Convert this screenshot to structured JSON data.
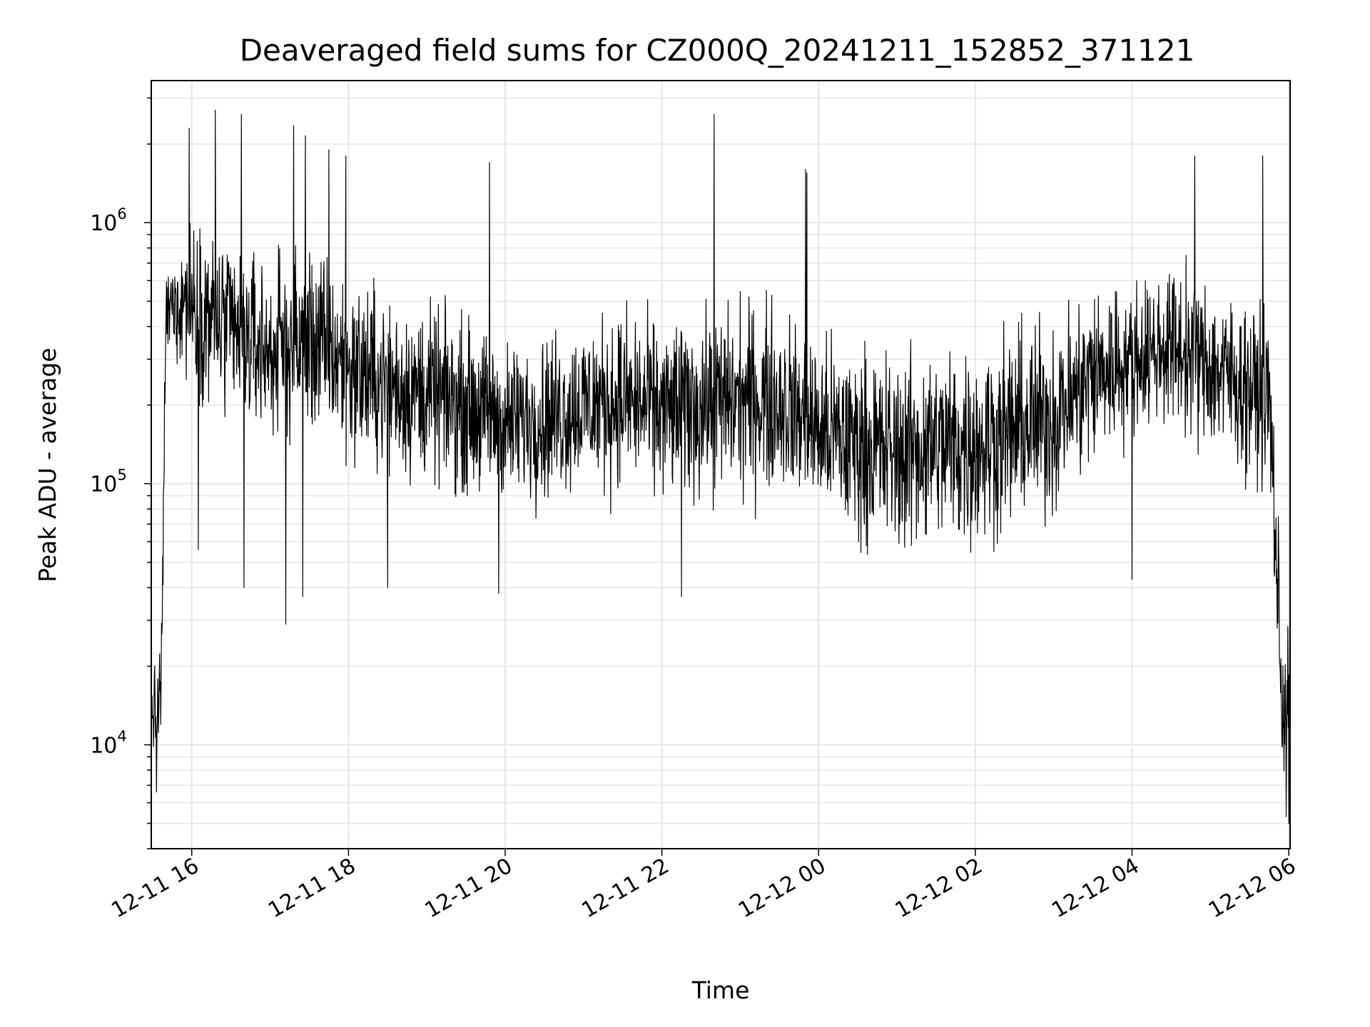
{
  "chart_data": {
    "type": "line",
    "title": "Deaveraged field sums for CZ000Q_20241211_152852_371121",
    "xlabel": "Time",
    "ylabel": "Peak ADU - average",
    "y_scale": "log",
    "ylim": [
      4000,
      3500000
    ],
    "xlim": [
      "2024-12-11 15:29",
      "2024-12-12 06:01"
    ],
    "grid": true,
    "x_ticks": [
      "12-11 16",
      "12-11 18",
      "12-11 20",
      "12-11 22",
      "12-12 00",
      "12-12 02",
      "12-12 04",
      "12-12 06"
    ],
    "x_tick_times": [
      "2024-12-11 16:00",
      "2024-12-11 18:00",
      "2024-12-11 20:00",
      "2024-12-11 22:00",
      "2024-12-12 00:00",
      "2024-12-12 02:00",
      "2024-12-12 04:00",
      "2024-12-12 06:00"
    ],
    "y_ticks": [
      {
        "base": "10",
        "exp": "4",
        "value": 10000
      },
      {
        "base": "10",
        "exp": "5",
        "value": 100000
      },
      {
        "base": "10",
        "exp": "6",
        "value": 1000000
      }
    ],
    "series": [
      {
        "color": "#000000",
        "x": [
          "2024-12-11 15:29",
          "2024-12-11 15:33",
          "2024-12-11 15:37",
          "2024-12-11 15:40",
          "2024-12-11 15:45",
          "2024-12-11 15:55",
          "2024-12-11 16:10",
          "2024-12-11 16:30",
          "2024-12-11 17:00",
          "2024-12-11 17:30",
          "2024-12-11 18:00",
          "2024-12-11 18:30",
          "2024-12-11 19:00",
          "2024-12-11 19:30",
          "2024-12-11 20:00",
          "2024-12-11 20:30",
          "2024-12-11 21:00",
          "2024-12-11 21:30",
          "2024-12-11 22:00",
          "2024-12-11 22:30",
          "2024-12-11 23:00",
          "2024-12-11 23:30",
          "2024-12-12 00:00",
          "2024-12-12 00:30",
          "2024-12-12 01:00",
          "2024-12-12 01:30",
          "2024-12-12 02:00",
          "2024-12-12 02:30",
          "2024-12-12 03:00",
          "2024-12-12 03:30",
          "2024-12-12 04:00",
          "2024-12-12 04:30",
          "2024-12-12 05:00",
          "2024-12-12 05:30",
          "2024-12-12 05:45",
          "2024-12-12 05:50",
          "2024-12-12 05:55",
          "2024-12-12 06:01"
        ],
        "y": [
          15000,
          12000,
          18000,
          420000,
          480000,
          520000,
          450000,
          380000,
          320000,
          360000,
          280000,
          240000,
          220000,
          200000,
          170000,
          180000,
          200000,
          210000,
          190000,
          200000,
          210000,
          210000,
          160000,
          140000,
          130000,
          140000,
          140000,
          160000,
          180000,
          260000,
          300000,
          340000,
          280000,
          230000,
          220000,
          60000,
          14000,
          15000
        ],
        "envelope_low": [
          8000,
          7000,
          9000,
          250000,
          250000,
          200000,
          150000,
          120000,
          110000,
          110000,
          90000,
          80000,
          75000,
          70000,
          65000,
          65000,
          70000,
          70000,
          65000,
          65000,
          65000,
          65000,
          60000,
          55000,
          50000,
          52000,
          55000,
          55000,
          60000,
          80000,
          120000,
          140000,
          110000,
          90000,
          90000,
          30000,
          8000,
          7000
        ],
        "envelope_high": [
          25000,
          20000,
          40000,
          650000,
          900000,
          1100000,
          1000000,
          900000,
          800000,
          900000,
          700000,
          600000,
          550000,
          500000,
          450000,
          480000,
          500000,
          520000,
          500000,
          520000,
          550000,
          560000,
          500000,
          480000,
          450000,
          480000,
          500000,
          550000,
          600000,
          650000,
          700000,
          900000,
          800000,
          650000,
          650000,
          200000,
          40000,
          45000
        ],
        "spikes": [
          {
            "x": "2024-12-11 15:58",
            "y": 2300000
          },
          {
            "x": "2024-12-11 16:18",
            "y": 2700000
          },
          {
            "x": "2024-12-11 16:38",
            "y": 2600000
          },
          {
            "x": "2024-12-11 17:18",
            "y": 2350000
          },
          {
            "x": "2024-12-11 17:27",
            "y": 2150000
          },
          {
            "x": "2024-12-11 17:45",
            "y": 1900000
          },
          {
            "x": "2024-12-11 17:58",
            "y": 1800000
          },
          {
            "x": "2024-12-11 19:48",
            "y": 1700000
          },
          {
            "x": "2024-12-11 22:40",
            "y": 2600000
          },
          {
            "x": "2024-12-11 23:50",
            "y": 1600000
          },
          {
            "x": "2024-12-11 23:51",
            "y": 1550000
          },
          {
            "x": "2024-12-12 04:48",
            "y": 1800000
          },
          {
            "x": "2024-12-12 05:40",
            "y": 1800000
          }
        ],
        "dips": [
          {
            "x": "2024-12-11 15:33",
            "y": 6600
          },
          {
            "x": "2024-12-11 16:05",
            "y": 56000
          },
          {
            "x": "2024-12-11 16:40",
            "y": 40000
          },
          {
            "x": "2024-12-11 17:12",
            "y": 29000
          },
          {
            "x": "2024-12-11 17:25",
            "y": 37000
          },
          {
            "x": "2024-12-11 18:30",
            "y": 40000
          },
          {
            "x": "2024-12-11 19:55",
            "y": 38000
          },
          {
            "x": "2024-12-11 22:15",
            "y": 37000
          },
          {
            "x": "2024-12-12 04:00",
            "y": 43000
          },
          {
            "x": "2024-12-12 05:58",
            "y": 5300
          },
          {
            "x": "2024-12-12 06:00",
            "y": 5000
          }
        ]
      }
    ]
  }
}
